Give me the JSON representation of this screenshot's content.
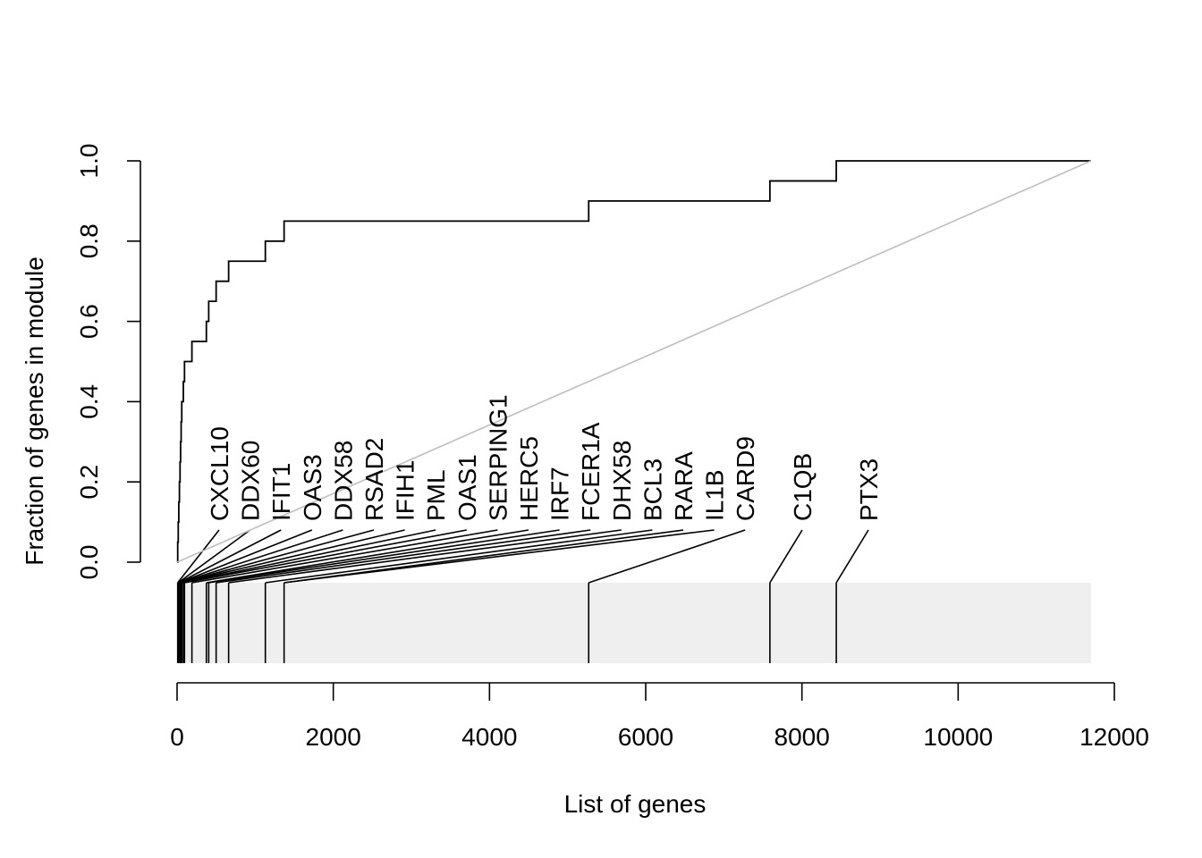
{
  "chart_data": {
    "type": "line",
    "title": "",
    "xlabel": "List of genes",
    "ylabel": "Fraction of genes in module",
    "xlim": [
      0,
      12000
    ],
    "ylim": [
      0,
      1
    ],
    "x_ticks": [
      0,
      2000,
      4000,
      6000,
      8000,
      10000,
      12000
    ],
    "y_ticks": [
      0.0,
      0.2,
      0.4,
      0.6,
      0.8,
      1.0
    ],
    "x_tick_labels": [
      "0",
      "2000",
      "4000",
      "6000",
      "8000",
      "10000",
      "12000"
    ],
    "y_tick_labels": [
      "0.0",
      "0.2",
      "0.4",
      "0.6",
      "0.8",
      "1.0"
    ],
    "total_genes": 11700,
    "grid": false,
    "series": [
      {
        "style": "step",
        "color": "#000000",
        "points": [
          [
            0,
            0.0
          ],
          [
            8,
            0.05
          ],
          [
            15,
            0.1
          ],
          [
            22,
            0.15
          ],
          [
            30,
            0.2
          ],
          [
            38,
            0.25
          ],
          [
            45,
            0.3
          ],
          [
            52,
            0.35
          ],
          [
            60,
            0.4
          ],
          [
            80,
            0.45
          ],
          [
            95,
            0.5
          ],
          [
            190,
            0.55
          ],
          [
            375,
            0.6
          ],
          [
            405,
            0.65
          ],
          [
            500,
            0.7
          ],
          [
            660,
            0.75
          ],
          [
            1130,
            0.8
          ],
          [
            1370,
            0.85
          ],
          [
            5270,
            0.9
          ],
          [
            7590,
            0.95
          ],
          [
            8440,
            1.0
          ],
          [
            11700,
            1.0
          ]
        ]
      },
      {
        "style": "diagonal",
        "color": "#bebebe",
        "points": [
          [
            0,
            0.0
          ],
          [
            11700,
            1.0
          ]
        ]
      }
    ],
    "rug": {
      "background_color": "#efefef",
      "positions": [
        8,
        15,
        22,
        30,
        38,
        45,
        52,
        60,
        80,
        95,
        190,
        375,
        405,
        500,
        660,
        1130,
        1370,
        5270,
        7590,
        8440
      ]
    },
    "gene_labels": [
      {
        "name": "CXCL10",
        "x": 8
      },
      {
        "name": "DDX60",
        "x": 15
      },
      {
        "name": "IFIT1",
        "x": 22
      },
      {
        "name": "OAS3",
        "x": 30
      },
      {
        "name": "DDX58",
        "x": 38
      },
      {
        "name": "RSAD2",
        "x": 45
      },
      {
        "name": "IFIH1",
        "x": 52
      },
      {
        "name": "PML",
        "x": 80
      },
      {
        "name": "OAS1",
        "x": 95
      },
      {
        "name": "SERPING1",
        "x": 190
      },
      {
        "name": "HERC5",
        "x": 375
      },
      {
        "name": "IRF7",
        "x": 405
      },
      {
        "name": "FCER1A",
        "x": 500
      },
      {
        "name": "DHX58",
        "x": 660
      },
      {
        "name": "BCL3",
        "x": 1130
      },
      {
        "name": "RARA",
        "x": 1370
      },
      {
        "name": "IL1B",
        "x": 1370
      },
      {
        "name": "CARD9",
        "x": 5270
      },
      {
        "name": "C1QB",
        "x": 7590
      },
      {
        "name": "PTX3",
        "x": 8440
      }
    ]
  }
}
